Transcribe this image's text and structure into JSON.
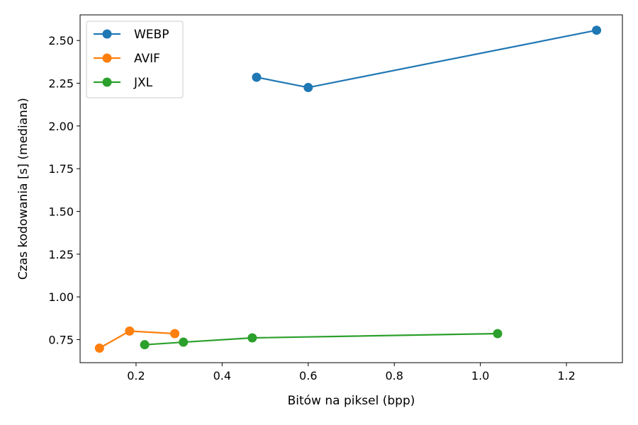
{
  "chart_data": {
    "type": "line",
    "title": "",
    "xlabel": "Bitów na piksel (bpp)",
    "ylabel": "Czas kodowania [s] (mediana)",
    "xlim": [
      0.07,
      1.33
    ],
    "ylim": [
      0.615,
      2.65
    ],
    "xticks": [
      0.2,
      0.4,
      0.6,
      0.8,
      1.0,
      1.2
    ],
    "xtick_labels": [
      "0.2",
      "0.4",
      "0.6",
      "0.8",
      "1.0",
      "1.2"
    ],
    "yticks": [
      0.75,
      1.0,
      1.25,
      1.5,
      1.75,
      2.0,
      2.25,
      2.5
    ],
    "ytick_labels": [
      "0.75",
      "1.00",
      "1.25",
      "1.50",
      "1.75",
      "2.00",
      "2.25",
      "2.50"
    ],
    "grid": false,
    "legend_position": "top-left",
    "series": [
      {
        "name": "WEBP",
        "color": "#1f77b4",
        "x": [
          0.48,
          0.6,
          1.27
        ],
        "y": [
          2.285,
          2.225,
          2.56
        ]
      },
      {
        "name": "AVIF",
        "color": "#ff7f0e",
        "x": [
          0.115,
          0.185,
          0.29
        ],
        "y": [
          0.7,
          0.8,
          0.785
        ]
      },
      {
        "name": "JXL",
        "color": "#2ca02c",
        "x": [
          0.22,
          0.31,
          0.47,
          1.04
        ],
        "y": [
          0.72,
          0.735,
          0.76,
          0.785
        ]
      }
    ]
  }
}
